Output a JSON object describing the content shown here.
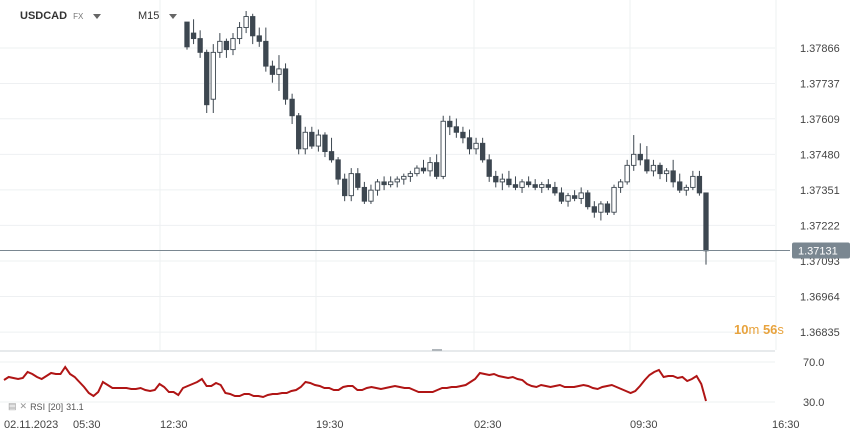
{
  "header": {
    "symbol": "USDCAD",
    "market": "FX",
    "timeframe": "M15"
  },
  "countdown": {
    "minutes": "10",
    "min_unit": "m",
    "seconds": "56",
    "sec_unit": "s"
  },
  "rsi_label": {
    "name": "RSI",
    "period": "[20]",
    "value": "31.1"
  },
  "chart_data": {
    "type": "candlestick",
    "price_axis": {
      "ticks": [
        "1.37866",
        "1.37737",
        "1.37609",
        "1.37480",
        "1.37351",
        "1.37222",
        "1.37093",
        "1.36964",
        "1.36835"
      ],
      "ylim": [
        1.3677,
        1.3804
      ]
    },
    "current_price": "1.37131",
    "time_axis": {
      "ticks": [
        "02.11.2023",
        "05:30",
        "12:30",
        "19:30",
        "02:30",
        "09:30",
        "16:30"
      ]
    },
    "candles": [
      [
        1.3796,
        1.3796,
        1.3786,
        1.3787
      ],
      [
        1.3792,
        1.3797,
        1.3788,
        1.379
      ],
      [
        1.379,
        1.3793,
        1.3783,
        1.3785
      ],
      [
        1.3785,
        1.3786,
        1.3763,
        1.3766
      ],
      [
        1.3768,
        1.3788,
        1.3763,
        1.3785
      ],
      [
        1.3785,
        1.3792,
        1.3783,
        1.3789
      ],
      [
        1.3789,
        1.379,
        1.3783,
        1.3786
      ],
      [
        1.3786,
        1.3792,
        1.3784,
        1.379
      ],
      [
        1.379,
        1.3796,
        1.3788,
        1.3794
      ],
      [
        1.3794,
        1.38,
        1.3792,
        1.3798
      ],
      [
        1.3798,
        1.3799,
        1.3788,
        1.3791
      ],
      [
        1.3791,
        1.3794,
        1.3787,
        1.3789
      ],
      [
        1.3789,
        1.3794,
        1.3778,
        1.378
      ],
      [
        1.378,
        1.3782,
        1.3774,
        1.3777
      ],
      [
        1.3777,
        1.3784,
        1.3771,
        1.3779
      ],
      [
        1.3779,
        1.3781,
        1.3766,
        1.3768
      ],
      [
        1.3768,
        1.377,
        1.3759,
        1.3762
      ],
      [
        1.3762,
        1.3763,
        1.3748,
        1.375
      ],
      [
        1.375,
        1.3758,
        1.3748,
        1.3756
      ],
      [
        1.3756,
        1.3758,
        1.375,
        1.3751
      ],
      [
        1.3751,
        1.3757,
        1.3749,
        1.3755
      ],
      [
        1.3755,
        1.3756,
        1.3747,
        1.3749
      ],
      [
        1.3749,
        1.3754,
        1.3745,
        1.3746
      ],
      [
        1.3746,
        1.3747,
        1.3737,
        1.3739
      ],
      [
        1.3739,
        1.3741,
        1.3731,
        1.3733
      ],
      [
        1.3733,
        1.3743,
        1.3731,
        1.3741
      ],
      [
        1.3741,
        1.3743,
        1.3735,
        1.3736
      ],
      [
        1.3736,
        1.3738,
        1.373,
        1.3731
      ],
      [
        1.3731,
        1.3737,
        1.373,
        1.3735
      ],
      [
        1.3735,
        1.3739,
        1.3733,
        1.3738
      ],
      [
        1.3738,
        1.374,
        1.3735,
        1.3737
      ],
      [
        1.3737,
        1.374,
        1.3736,
        1.3738
      ],
      [
        1.3738,
        1.374,
        1.3736,
        1.3739
      ],
      [
        1.3739,
        1.3741,
        1.3737,
        1.374
      ],
      [
        1.374,
        1.3742,
        1.3738,
        1.3741
      ],
      [
        1.3741,
        1.3744,
        1.374,
        1.3743
      ],
      [
        1.3743,
        1.3746,
        1.3741,
        1.3742
      ],
      [
        1.3742,
        1.3747,
        1.374,
        1.3745
      ],
      [
        1.3745,
        1.3748,
        1.3739,
        1.374
      ],
      [
        1.374,
        1.3762,
        1.3739,
        1.376
      ],
      [
        1.376,
        1.3762,
        1.3755,
        1.3758
      ],
      [
        1.3758,
        1.3761,
        1.3754,
        1.3756
      ],
      [
        1.3756,
        1.3758,
        1.3752,
        1.3754
      ],
      [
        1.3754,
        1.3757,
        1.3748,
        1.375
      ],
      [
        1.375,
        1.3754,
        1.3748,
        1.3752
      ],
      [
        1.3752,
        1.3754,
        1.3745,
        1.3746
      ],
      [
        1.3746,
        1.3748,
        1.3738,
        1.374
      ],
      [
        1.374,
        1.3742,
        1.3736,
        1.3738
      ],
      [
        1.3738,
        1.3741,
        1.3735,
        1.3739
      ],
      [
        1.3739,
        1.3742,
        1.3736,
        1.3737
      ],
      [
        1.3737,
        1.374,
        1.3735,
        1.3736
      ],
      [
        1.3736,
        1.3739,
        1.3734,
        1.3738
      ],
      [
        1.3738,
        1.374,
        1.3736,
        1.3737
      ],
      [
        1.3737,
        1.3739,
        1.3735,
        1.3736
      ],
      [
        1.3736,
        1.3738,
        1.3734,
        1.3737
      ],
      [
        1.3737,
        1.3739,
        1.3735,
        1.3736
      ],
      [
        1.3736,
        1.3738,
        1.3733,
        1.3734
      ],
      [
        1.3734,
        1.3736,
        1.373,
        1.3731
      ],
      [
        1.3731,
        1.3734,
        1.3729,
        1.3733
      ],
      [
        1.3733,
        1.3735,
        1.3731,
        1.3732
      ],
      [
        1.3732,
        1.3736,
        1.373,
        1.3734
      ],
      [
        1.3734,
        1.3735,
        1.3728,
        1.3729
      ],
      [
        1.3729,
        1.3731,
        1.3725,
        1.3727
      ],
      [
        1.3727,
        1.3731,
        1.3724,
        1.373
      ],
      [
        1.373,
        1.3731,
        1.3726,
        1.3727
      ],
      [
        1.3727,
        1.3737,
        1.3726,
        1.3736
      ],
      [
        1.3736,
        1.3739,
        1.3734,
        1.3738
      ],
      [
        1.3738,
        1.3746,
        1.3737,
        1.3744
      ],
      [
        1.3744,
        1.3755,
        1.3742,
        1.3748
      ],
      [
        1.3748,
        1.3752,
        1.3744,
        1.3746
      ],
      [
        1.3746,
        1.3751,
        1.3741,
        1.3742
      ],
      [
        1.3742,
        1.3746,
        1.374,
        1.3744
      ],
      [
        1.3744,
        1.3745,
        1.3739,
        1.3741
      ],
      [
        1.3741,
        1.3743,
        1.3738,
        1.3742
      ],
      [
        1.3742,
        1.3746,
        1.3736,
        1.3738
      ],
      [
        1.3738,
        1.3741,
        1.3734,
        1.3735
      ],
      [
        1.3735,
        1.3737,
        1.3733,
        1.3736
      ],
      [
        1.3736,
        1.3742,
        1.3735,
        1.374
      ],
      [
        1.374,
        1.3742,
        1.3733,
        1.3734
      ],
      [
        1.3734,
        1.3734,
        1.3708,
        1.3713
      ]
    ],
    "rsi": {
      "name": "RSI",
      "period": 20,
      "current": 31.1,
      "levels": [
        70.0,
        30.0
      ],
      "ylim": [
        20,
        80
      ],
      "values": [
        52,
        55,
        54,
        53,
        54,
        60,
        58,
        55,
        53,
        56,
        59,
        58,
        58,
        65,
        58,
        55,
        50,
        45,
        39,
        36,
        40,
        50,
        47,
        44,
        44,
        44,
        44,
        43,
        43,
        44,
        42,
        41,
        42,
        48,
        45,
        40,
        40,
        37,
        44,
        46,
        48,
        50,
        53,
        46,
        46,
        49,
        47,
        39,
        38,
        36,
        36,
        38,
        38,
        36,
        36,
        35,
        37,
        38,
        38,
        39,
        39,
        41,
        42,
        45,
        50,
        49,
        47,
        46,
        44,
        44,
        42,
        42,
        45,
        46,
        46,
        42,
        42,
        44,
        45,
        44,
        43,
        44,
        45,
        46,
        45,
        44,
        44,
        42,
        40,
        40,
        40,
        40,
        42,
        44,
        44,
        45,
        45,
        46,
        47,
        50,
        53,
        59,
        58,
        57,
        58,
        56,
        55,
        54,
        55,
        53,
        52,
        48,
        46,
        45,
        47,
        46,
        45,
        46,
        47,
        45,
        45,
        45,
        46,
        47,
        46,
        44,
        43,
        45,
        46,
        47,
        45,
        43,
        41,
        39,
        41,
        46,
        52,
        57,
        60,
        62,
        55,
        56,
        56,
        54,
        55,
        51,
        53,
        56,
        48,
        31
      ]
    }
  }
}
